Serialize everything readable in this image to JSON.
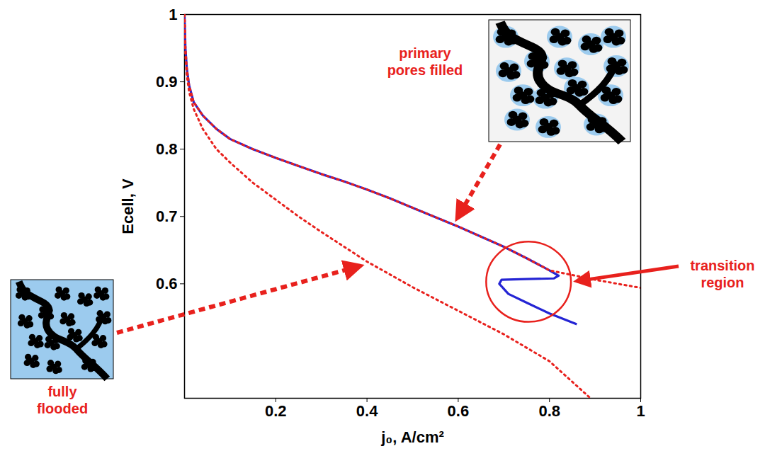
{
  "chart_data": {
    "type": "line",
    "x_label": "j₀, A/cm²",
    "y_label": "Ecell, V",
    "xlim": [
      0,
      1
    ],
    "ylim": [
      0.43,
      1
    ],
    "xticks": [
      0.2,
      0.4,
      0.6,
      0.8,
      1
    ],
    "yticks": [
      0.6,
      0.7,
      0.8,
      0.9,
      1
    ],
    "series": [
      {
        "color": "#2424d4",
        "line_style": "solid",
        "x": [
          0,
          0.002,
          0.005,
          0.01,
          0.02,
          0.04,
          0.07,
          0.1,
          0.15,
          0.2,
          0.25,
          0.3,
          0.35,
          0.4,
          0.45,
          0.5,
          0.55,
          0.6,
          0.65,
          0.7,
          0.75,
          0.8,
          0.82,
          0.81,
          0.75,
          0.695,
          0.69,
          0.71,
          0.75,
          0.8,
          0.86
        ],
        "values": [
          1,
          0.95,
          0.92,
          0.895,
          0.87,
          0.85,
          0.83,
          0.815,
          0.8,
          0.787,
          0.775,
          0.763,
          0.752,
          0.74,
          0.727,
          0.713,
          0.699,
          0.685,
          0.67,
          0.655,
          0.638,
          0.62,
          0.612,
          0.608,
          0.607,
          0.606,
          0.6,
          0.585,
          0.572,
          0.556,
          0.54
        ]
      },
      {
        "name": "primary pores filled",
        "color": "#e8211d",
        "line_style": "dotted",
        "x": [
          0,
          0.002,
          0.005,
          0.01,
          0.02,
          0.04,
          0.07,
          0.1,
          0.15,
          0.2,
          0.25,
          0.3,
          0.35,
          0.4,
          0.45,
          0.5,
          0.55,
          0.6,
          0.65,
          0.7,
          0.75,
          0.8,
          0.85,
          0.9,
          0.95,
          1
        ],
        "values": [
          1,
          0.95,
          0.92,
          0.895,
          0.87,
          0.85,
          0.83,
          0.815,
          0.8,
          0.787,
          0.775,
          0.763,
          0.752,
          0.74,
          0.727,
          0.713,
          0.699,
          0.685,
          0.67,
          0.655,
          0.638,
          0.62,
          0.613,
          0.606,
          0.6,
          0.594
        ]
      },
      {
        "name": "fully flooded",
        "color": "#e8211d",
        "line_style": "dotted",
        "x": [
          0,
          0.002,
          0.005,
          0.01,
          0.02,
          0.04,
          0.07,
          0.1,
          0.15,
          0.2,
          0.25,
          0.3,
          0.35,
          0.4,
          0.5,
          0.6,
          0.7,
          0.8,
          0.89
        ],
        "values": [
          1,
          0.94,
          0.91,
          0.885,
          0.86,
          0.83,
          0.8,
          0.78,
          0.75,
          0.725,
          0.7,
          0.677,
          0.655,
          0.633,
          0.595,
          0.56,
          0.525,
          0.485,
          0.43
        ]
      }
    ],
    "annotations": [
      {
        "text": "transition region"
      }
    ]
  }
}
